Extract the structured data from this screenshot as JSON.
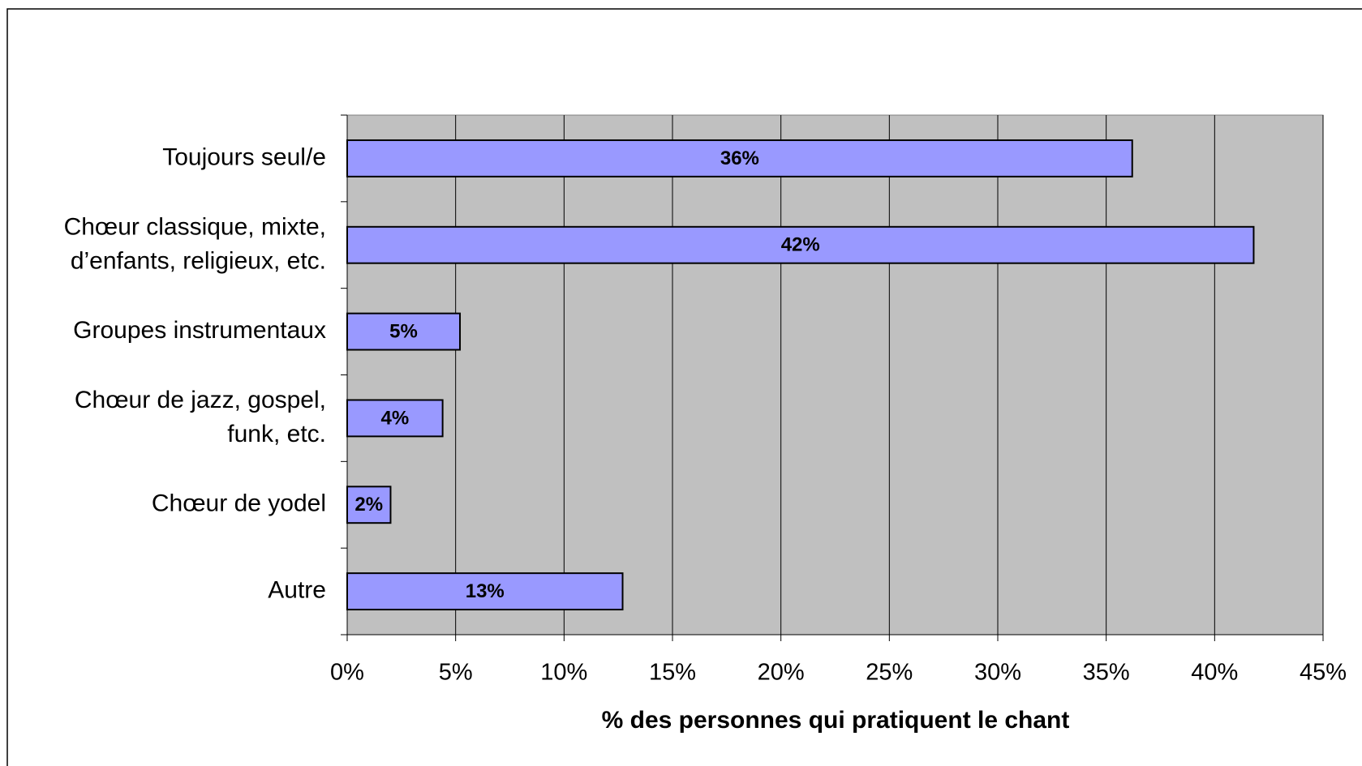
{
  "chart_data": {
    "type": "hbar",
    "categories": [
      "Toujours seul/e",
      "Chœur classique, mixte,\nd’enfants, religieux, etc.",
      "Groupes instrumentaux",
      "Chœur de jazz, gospel,\nfunk, etc.",
      "Chœur de yodel",
      "Autre"
    ],
    "values": [
      36.2,
      41.8,
      5.2,
      4.4,
      2.0,
      12.7
    ],
    "value_labels": [
      "36%",
      "42%",
      "5%",
      "4%",
      "2%",
      "13%"
    ],
    "color": "#9999ff",
    "xlabel": "% des personnes qui pratiquent le chant",
    "xlim": [
      0,
      45
    ],
    "xticks": [
      {
        "value": 0,
        "label": "0%"
      },
      {
        "value": 5,
        "label": "5%"
      },
      {
        "value": 10,
        "label": "10%"
      },
      {
        "value": 15,
        "label": "15%"
      },
      {
        "value": 20,
        "label": "20%"
      },
      {
        "value": 25,
        "label": "25%"
      },
      {
        "value": 30,
        "label": "30%"
      },
      {
        "value": 35,
        "label": "35%"
      },
      {
        "value": 40,
        "label": "40%"
      },
      {
        "value": 45,
        "label": "45%"
      }
    ],
    "grid": true
  }
}
